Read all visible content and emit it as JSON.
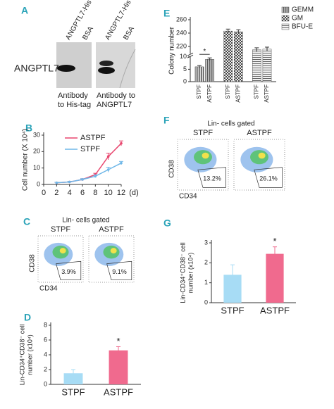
{
  "blot": {
    "letter": "A",
    "lanes": [
      "ANGPTL7-His",
      "BSA",
      "ANGPTL7-His",
      "BSA"
    ],
    "protein": "ANGPTL7",
    "captions": [
      [
        "Antibody",
        "to His-tag"
      ],
      [
        "Antibody to",
        "ANGPTL7"
      ]
    ]
  },
  "flow": [
    {
      "letter": "F",
      "title": "Lin- cells gated",
      "samples": [
        "STPF",
        "ASTPF"
      ],
      "percents": [
        "13.2%",
        "26.1%"
      ],
      "ylabel": "CD38",
      "xlabel": "CD34"
    },
    {
      "letter": "C",
      "title": "Lin- cells gated",
      "samples": [
        "STPF",
        "ASTPF"
      ],
      "percents": [
        "3.9%",
        "9.1%"
      ],
      "ylabel": "CD38",
      "xlabel": "CD34"
    }
  ],
  "chart_data": [
    {
      "type": "line",
      "panel": "B",
      "ylabel": "Cell number (X 10⁴)",
      "xlabel": "(d)",
      "x": [
        2,
        4,
        6,
        8,
        10,
        12
      ],
      "xlim": [
        0,
        12
      ],
      "xticks": [
        0,
        2,
        4,
        6,
        8,
        10,
        12
      ],
      "ylim": [
        0,
        30
      ],
      "yticks": [
        0,
        10,
        20,
        30
      ],
      "series": [
        {
          "name": "ASTPF",
          "color": "#e8476f",
          "values": [
            1,
            1.5,
            3,
            6,
            17,
            25
          ],
          "errors": [
            0.3,
            0.3,
            0.5,
            0.8,
            2,
            1.5
          ]
        },
        {
          "name": "STPF",
          "color": "#6fb7e8",
          "values": [
            1,
            1.5,
            3,
            5,
            9,
            13
          ],
          "errors": [
            0.3,
            0.3,
            0.5,
            0.8,
            1.5,
            1
          ]
        }
      ]
    },
    {
      "type": "bar",
      "panel": "E",
      "ylabel": "Colony number",
      "categories": [
        "STPF",
        "ASTPF"
      ],
      "ylim": [
        0,
        260
      ],
      "axis_break": [
        10,
        210
      ],
      "yticks": [
        0,
        5,
        10,
        220,
        240,
        260
      ],
      "annotation": "*",
      "series": [
        {
          "name": "GEMM",
          "hatch": "vertical",
          "values": [
            6,
            9
          ],
          "errors": [
            0.5,
            0.6
          ]
        },
        {
          "name": "GM",
          "hatch": "check",
          "values": [
            243,
            242
          ],
          "errors": [
            3,
            3
          ]
        },
        {
          "name": "BFU-E",
          "hatch": "horizontal",
          "values": [
            215,
            216
          ],
          "errors": [
            3,
            3
          ]
        }
      ]
    },
    {
      "type": "bar",
      "panel": "G",
      "ylabel": [
        "Lin-CD34⁺CD38⁻ cell",
        "number (x10⁴)"
      ],
      "categories": [
        "STPF",
        "ASTPF"
      ],
      "values": [
        1.4,
        2.45
      ],
      "errors": [
        0.5,
        0.35
      ],
      "colors": [
        "#a7dcf5",
        "#f06a8e"
      ],
      "ylim": [
        0,
        3
      ],
      "yticks": [
        0,
        1,
        2,
        3
      ],
      "annotation": "*"
    },
    {
      "type": "bar",
      "panel": "D",
      "ylabel": [
        "Lin-CD34⁺CD38⁻ cell",
        "number (x10⁴)"
      ],
      "categories": [
        "STPF",
        "ASTPF"
      ],
      "values": [
        1.5,
        4.6
      ],
      "errors": [
        0.5,
        0.5
      ],
      "colors": [
        "#a7dcf5",
        "#f06a8e"
      ],
      "ylim": [
        0,
        8
      ],
      "yticks": [
        0,
        2,
        4,
        6,
        8
      ],
      "annotation": "*"
    }
  ]
}
